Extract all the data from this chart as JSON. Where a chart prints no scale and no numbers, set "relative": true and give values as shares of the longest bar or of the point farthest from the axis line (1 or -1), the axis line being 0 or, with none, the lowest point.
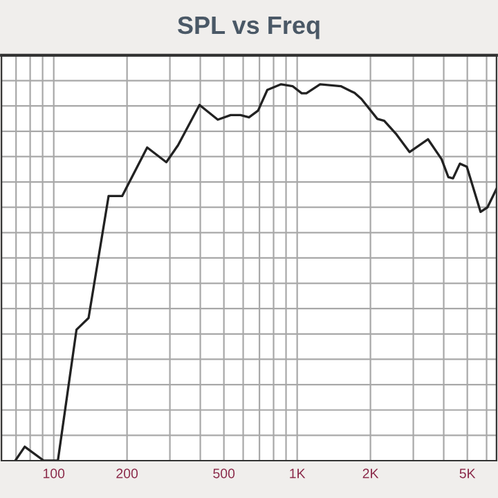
{
  "chart_data": {
    "type": "line",
    "title": "SPL vs Freq",
    "relative": true,
    "log": "x",
    "grid": true,
    "marker": "none",
    "line_style": "solid",
    "xlim": [
      61,
      6590
    ],
    "xticks": [
      100,
      200,
      500,
      {
        "value": 1000,
        "label": "1K"
      },
      {
        "value": 2000,
        "label": "2K"
      },
      {
        "value": 5000,
        "label": "5K"
      }
    ],
    "tick_labels": "x",
    "series": [
      {
        "color": "#222222",
        "x": [
          69.5,
          76,
          91,
          104,
          124,
          139,
          168,
          191,
          242,
          290,
          324,
          397,
          472,
          533,
          585,
          634,
          691,
          754,
          859,
          957,
          1044,
          1091,
          1242,
          1510,
          1721,
          1836,
          2135,
          2278,
          2541,
          2894,
          3446,
          3920,
          4181,
          4367,
          4660,
          4977,
          5667,
          6050,
          6590
        ],
        "values": [
          0,
          0.037,
          0,
          0,
          0.348,
          0.379,
          0.703,
          0.703,
          0.832,
          0.793,
          0.838,
          0.945,
          0.906,
          0.918,
          0.918,
          0.912,
          0.93,
          0.985,
          1,
          0.995,
          0.976,
          0.976,
          1,
          0.995,
          0.977,
          0.961,
          0.908,
          0.903,
          0.869,
          0.82,
          0.854,
          0.801,
          0.753,
          0.75,
          0.789,
          0.781,
          0.661,
          0.673,
          0.722
        ]
      }
    ]
  }
}
